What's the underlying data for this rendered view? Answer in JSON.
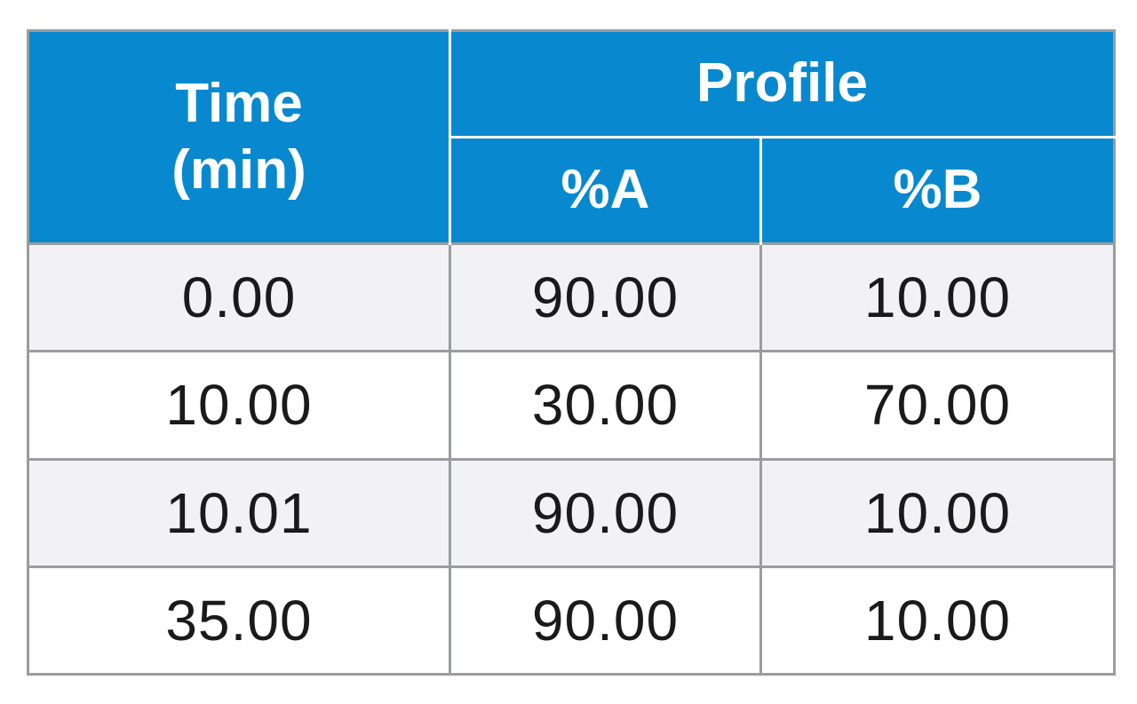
{
  "table": {
    "header": {
      "time_line1": "Time",
      "time_line2": "(min)",
      "profile": "Profile",
      "col_a": "%A",
      "col_b": "%B"
    },
    "rows": [
      {
        "time": "0.00",
        "a": "90.00",
        "b": "10.00"
      },
      {
        "time": "10.00",
        "a": "30.00",
        "b": "70.00"
      },
      {
        "time": "10.01",
        "a": "90.00",
        "b": "10.00"
      },
      {
        "time": "35.00",
        "a": "90.00",
        "b": "10.00"
      }
    ]
  },
  "colors": {
    "header_bg": "#0889cf",
    "header_text": "#ffffff",
    "shaded_row_bg": "#f2f2f4",
    "grid_line": "#9a9c9e"
  }
}
